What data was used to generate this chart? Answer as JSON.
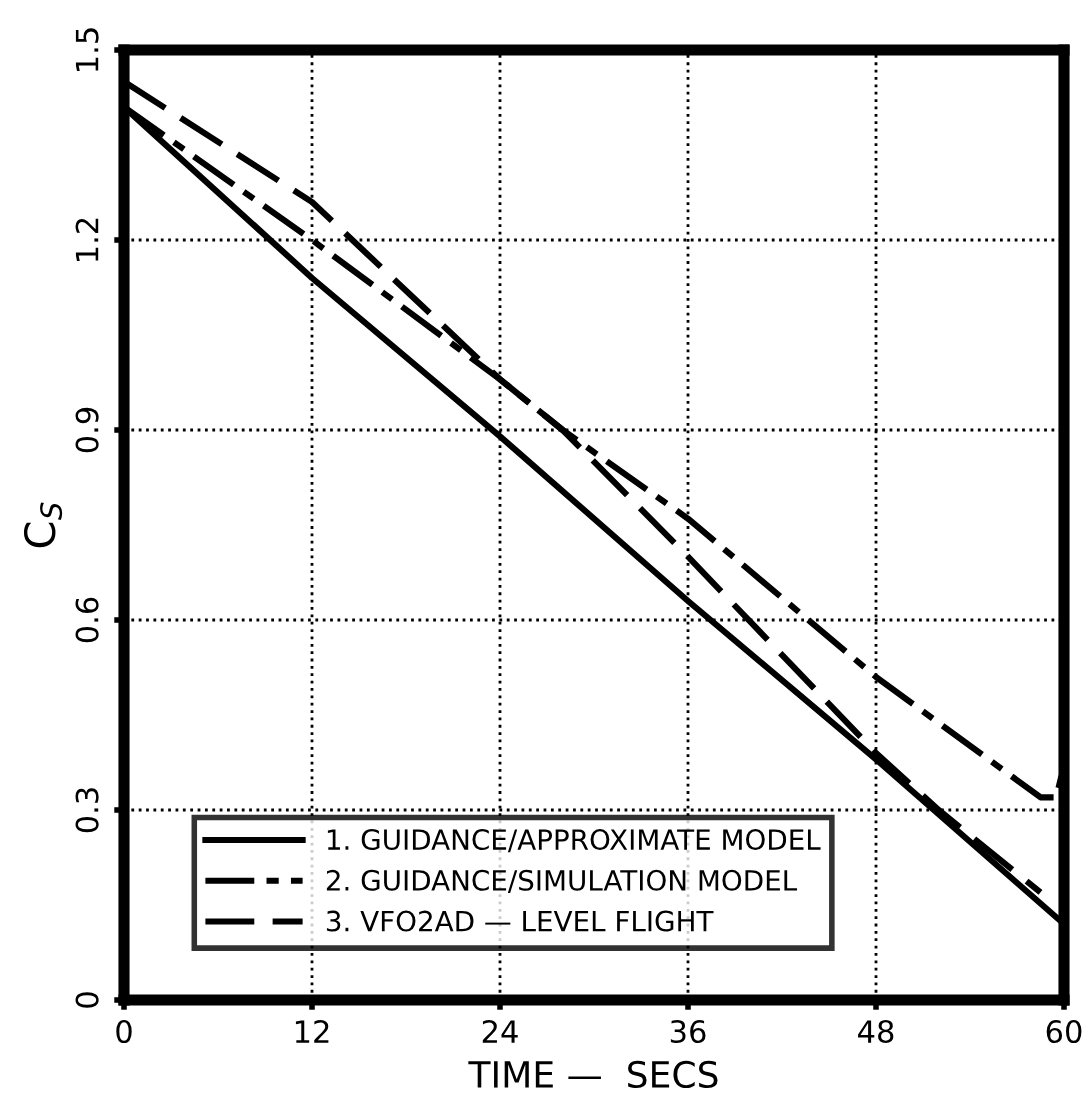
{
  "chart_data": {
    "type": "line",
    "xlabel": "TIME —  SECS",
    "ylabel": "C$_{S}$",
    "xlim": [
      0,
      60
    ],
    "ylim": [
      0,
      1.5
    ],
    "xticks": [
      0,
      12,
      24,
      36,
      48,
      60
    ],
    "yticks": [
      0,
      0.3,
      0.6,
      0.9,
      1.2,
      1.5
    ],
    "grid": true,
    "legend": "bottom left",
    "series": [
      {
        "name": "1. GUIDANCE/APPROXIMATE MODEL",
        "color": "#000000",
        "line_style": "solid",
        "x": [
          0,
          12,
          24,
          36,
          48,
          60
        ],
        "values": [
          1.41,
          1.14,
          0.89,
          0.63,
          0.38,
          0.12
        ]
      },
      {
        "name": "2. GUIDANCE/SIMULATION MODEL",
        "color": "#000000",
        "line_style": "dashdot",
        "x": [
          0,
          12,
          24,
          28,
          36,
          48,
          58.5,
          59.5,
          60
        ],
        "values": [
          1.41,
          1.2,
          0.98,
          0.9,
          0.76,
          0.51,
          0.32,
          0.32,
          0.37
        ]
      },
      {
        "name": "3. VFO2AD — LEVEL FLIGHT",
        "color": "#000000",
        "line_style": "dashed",
        "x": [
          0,
          12,
          24,
          28,
          36,
          48,
          52,
          58.5
        ],
        "values": [
          1.45,
          1.26,
          0.98,
          0.9,
          0.7,
          0.39,
          0.3,
          0.17
        ]
      }
    ]
  }
}
